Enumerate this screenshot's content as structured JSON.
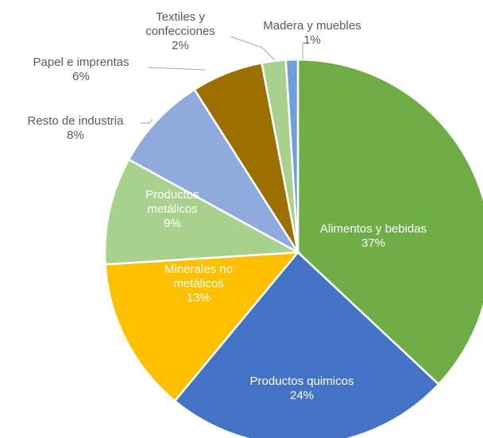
{
  "chart_data": {
    "type": "pie",
    "categories": [
      "Alimentos y bebidas",
      "Productos quimicos",
      "Minerales no\nmetálicos",
      "Productos\nmetálicos",
      "Resto de industria",
      "Papel e imprentas",
      "Textiles y\nconfecciones",
      "Madera y muebles"
    ],
    "values": [
      37,
      24,
      13,
      9,
      8,
      6,
      2,
      1
    ],
    "value_labels": [
      "37%",
      "24%",
      "13%",
      "9%",
      "8%",
      "6%",
      "2%",
      "1%"
    ],
    "colors": [
      "#70ad47",
      "#4472c4",
      "#ffc000",
      "#a9d18e",
      "#8faadc",
      "#9c7000",
      "#a9d18e",
      "#6f9fdb"
    ]
  }
}
